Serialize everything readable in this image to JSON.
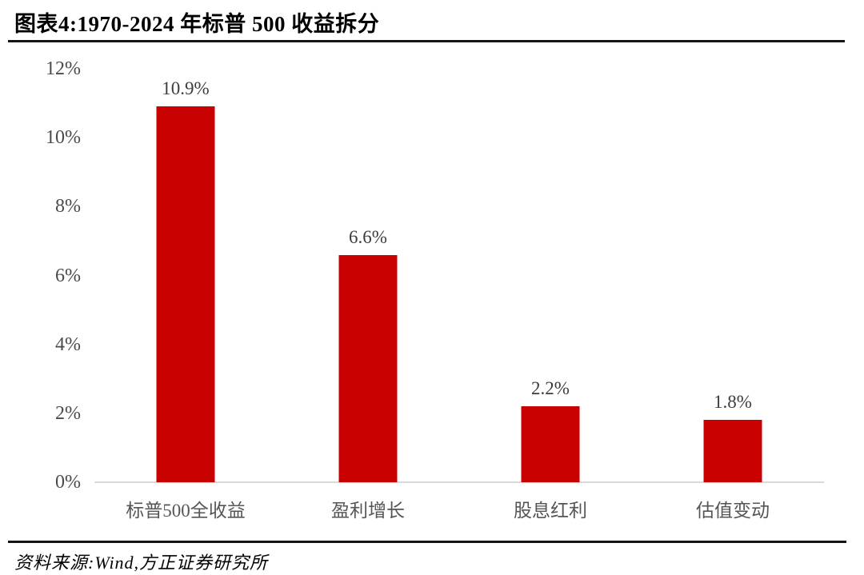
{
  "header": {
    "title": "图表4:1970-2024 年标普 500 收益拆分"
  },
  "chart_data": {
    "type": "bar",
    "title": "图表4:1970-2024 年标普 500 收益拆分",
    "categories": [
      "标普500全收益",
      "盈利增长",
      "股息红利",
      "估值变动"
    ],
    "values": [
      10.9,
      6.6,
      2.2,
      1.8
    ],
    "data_labels": [
      "10.9%",
      "6.6%",
      "2.2%",
      "1.8%"
    ],
    "xlabel": "",
    "ylabel": "",
    "ylim": [
      0,
      12
    ],
    "ytick_values": [
      0,
      2,
      4,
      6,
      8,
      10,
      12
    ],
    "ytick_labels": [
      "0%",
      "2%",
      "4%",
      "6%",
      "8%",
      "10%",
      "12%"
    ],
    "grid": false,
    "legend": false,
    "bar_color": "#c80000"
  },
  "footer": {
    "source": "资料来源:Wind,方正证券研究所"
  },
  "colors": {
    "bar": "#c80000",
    "axis_line": "#d9d9d9",
    "tick_text": "#4a4a4a",
    "value_text": "#3d3d3d",
    "category_text": "#555555",
    "rule": "#141414"
  }
}
